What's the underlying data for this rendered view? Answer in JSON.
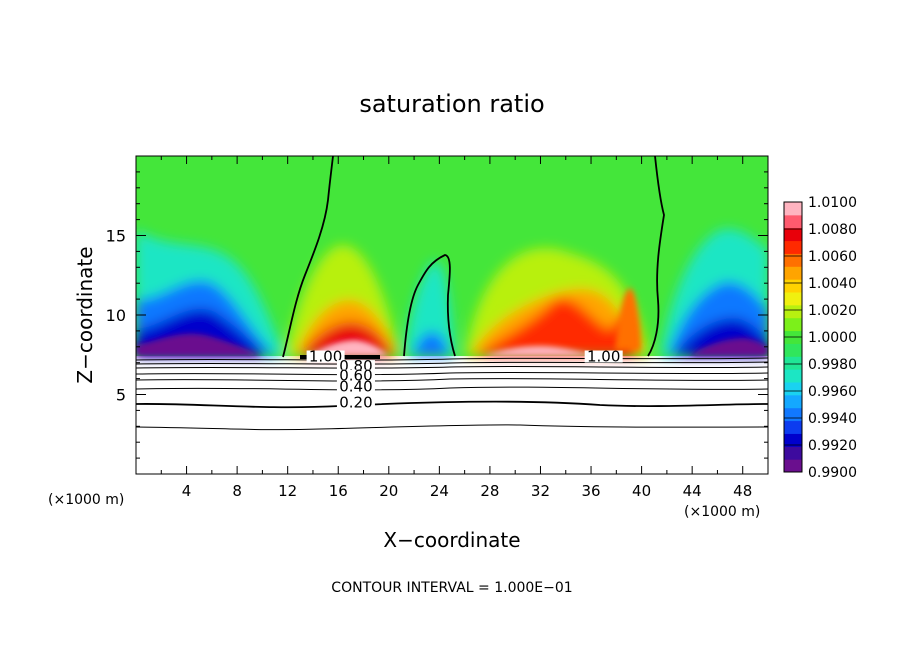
{
  "chart_data": {
    "type": "heatmap",
    "title": "saturation ratio",
    "xlabel": "X−coordinate",
    "ylabel": "Z−coordinate",
    "x_unit_left": "(×1000 m)",
    "x_unit_right": "(×1000 m)",
    "xlim": [
      0,
      50
    ],
    "ylim": [
      0,
      20
    ],
    "x_ticks": [
      4,
      8,
      12,
      16,
      20,
      24,
      28,
      32,
      36,
      40,
      44,
      48
    ],
    "x_tick_labels": [
      "4",
      "8",
      "12",
      "16",
      "20",
      "24",
      "28",
      "32",
      "36",
      "40",
      "44",
      "48"
    ],
    "y_ticks": [
      5,
      10,
      15
    ],
    "y_tick_labels": [
      "5",
      "10",
      "15"
    ],
    "footer": "CONTOUR INTERVAL = 1.000E−01",
    "colorbar": {
      "min": 0.99,
      "max": 1.01,
      "tick_labels": [
        "1.0100",
        "1.0080",
        "1.0060",
        "1.0040",
        "1.0020",
        "1.0000",
        "0.9980",
        "0.9960",
        "0.9940",
        "0.9920",
        "0.9900"
      ],
      "colors": [
        "#6a0f8e",
        "#3d0a9e",
        "#0000cc",
        "#0c3cf0",
        "#1178ff",
        "#14a8ff",
        "#1ad2f0",
        "#1ce6c4",
        "#20e696",
        "#30e65c",
        "#44e63a",
        "#7cf01a",
        "#b8f010",
        "#f0f010",
        "#ffd200",
        "#ffa400",
        "#ff7000",
        "#ff2a00",
        "#e8000a",
        "#ff5a6e",
        "#ffb4c0"
      ]
    },
    "contour_labels": [
      {
        "text": "1.00",
        "x": 37.0,
        "z": 7.2
      },
      {
        "text": "1.00",
        "x": 15.0,
        "z": 7.2
      },
      {
        "text": "0.80",
        "x": 17.4,
        "z": 6.6
      },
      {
        "text": "0.60",
        "x": 17.4,
        "z": 6.0
      },
      {
        "text": "0.40",
        "x": 17.4,
        "z": 5.3
      },
      {
        "text": "0.20",
        "x": 17.4,
        "z": 4.3
      }
    ]
  }
}
